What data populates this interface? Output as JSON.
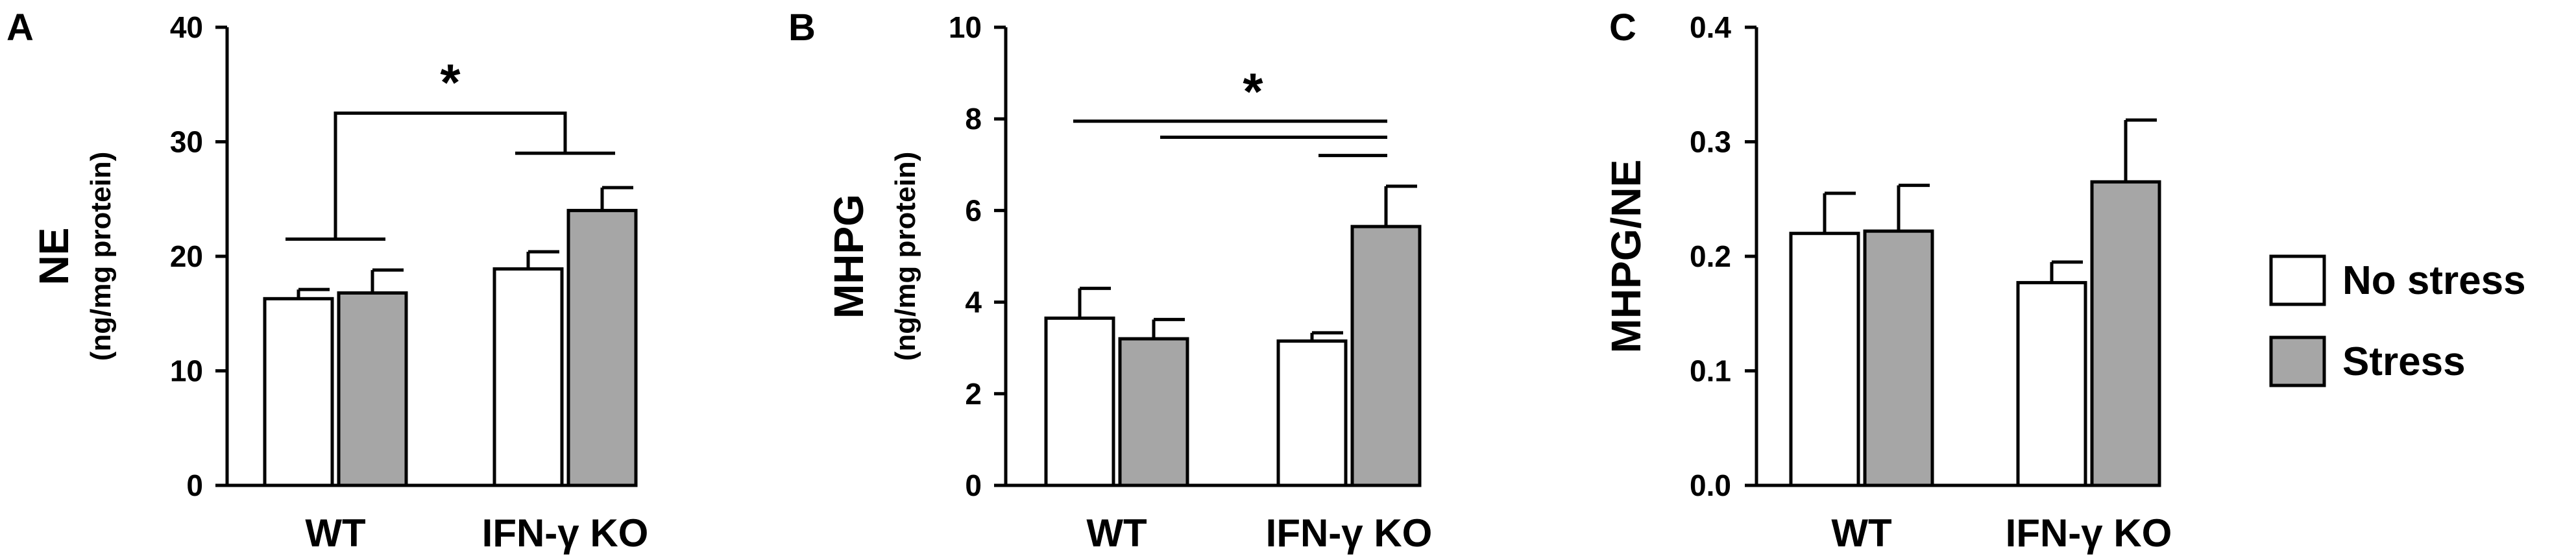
{
  "colors": {
    "no_stress": "#ffffff",
    "stress": "#a6a6a6",
    "stroke": "#000000"
  },
  "legend": {
    "position": "right",
    "items": [
      {
        "label": "No stress",
        "color": "#ffffff"
      },
      {
        "label": "Stress",
        "color": "#a6a6a6"
      }
    ]
  },
  "chart_data": [
    {
      "type": "bar",
      "panel": "A",
      "ylabel": "NE",
      "ylabel_sub": "(ng/mg protein)",
      "categories": [
        "WT",
        "IFN-γ KO"
      ],
      "series": [
        {
          "name": "No stress",
          "values": [
            16.3,
            18.9
          ],
          "errors": [
            0.8,
            1.5
          ]
        },
        {
          "name": "Stress",
          "values": [
            16.8,
            24.0
          ],
          "errors": [
            2.0,
            2.0
          ]
        }
      ],
      "ylim": [
        0,
        40
      ],
      "yticks": [
        "0",
        "10",
        "20",
        "30",
        "40"
      ],
      "significance": "*"
    },
    {
      "type": "bar",
      "panel": "B",
      "ylabel": "MHPG",
      "ylabel_sub": "(ng/mg protein)",
      "categories": [
        "WT",
        "IFN-γ KO"
      ],
      "series": [
        {
          "name": "No stress",
          "values": [
            3.65,
            3.15
          ],
          "errors": [
            0.65,
            0.18
          ]
        },
        {
          "name": "Stress",
          "values": [
            3.2,
            5.65
          ],
          "errors": [
            0.42,
            0.88
          ]
        }
      ],
      "ylim": [
        0,
        10
      ],
      "yticks": [
        "0",
        "2",
        "4",
        "6",
        "8",
        "10"
      ],
      "significance": "*"
    },
    {
      "type": "bar",
      "panel": "C",
      "ylabel": "MHPG/NE",
      "ylabel_sub": "",
      "categories": [
        "WT",
        "IFN-γ KO"
      ],
      "series": [
        {
          "name": "No stress",
          "values": [
            0.22,
            0.177
          ],
          "errors": [
            0.035,
            0.018
          ]
        },
        {
          "name": "Stress",
          "values": [
            0.222,
            0.265
          ],
          "errors": [
            0.04,
            0.054
          ]
        }
      ],
      "ylim": [
        0,
        0.4
      ],
      "yticks": [
        "0.0",
        "0.1",
        "0.2",
        "0.3",
        "0.4"
      ],
      "significance": ""
    }
  ]
}
